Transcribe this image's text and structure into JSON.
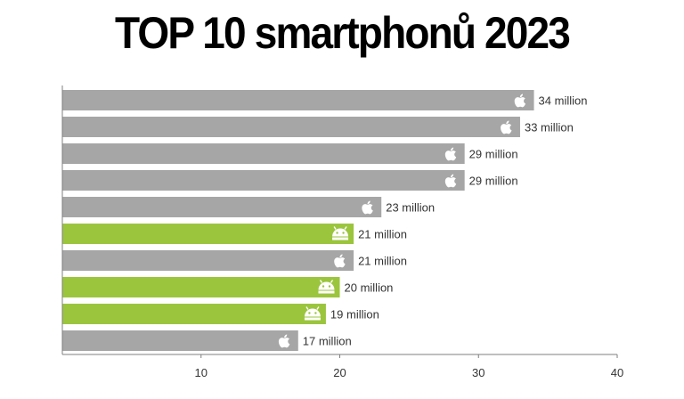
{
  "title": "TOP 10 smartphonů 2023",
  "chart_data": {
    "type": "bar",
    "orientation": "horizontal",
    "title": "TOP 10 smartphonů 2023",
    "unit_suffix": " million",
    "xlim": [
      0,
      40
    ],
    "xticks": [
      10,
      20,
      30,
      40
    ],
    "grid": false,
    "bars": [
      {
        "value": 34,
        "label": "34 million",
        "platform": "apple",
        "color": "#a6a6a6"
      },
      {
        "value": 33,
        "label": "33 million",
        "platform": "apple",
        "color": "#a6a6a6"
      },
      {
        "value": 29,
        "label": "29 million",
        "platform": "apple",
        "color": "#a6a6a6"
      },
      {
        "value": 29,
        "label": "29 million",
        "platform": "apple",
        "color": "#a6a6a6"
      },
      {
        "value": 23,
        "label": "23 million",
        "platform": "apple",
        "color": "#a6a6a6"
      },
      {
        "value": 21,
        "label": "21 million",
        "platform": "android",
        "color": "#9bc53d"
      },
      {
        "value": 21,
        "label": "21 million",
        "platform": "apple",
        "color": "#a6a6a6"
      },
      {
        "value": 20,
        "label": "20 million",
        "platform": "android",
        "color": "#9bc53d"
      },
      {
        "value": 19,
        "label": "19 million",
        "platform": "android",
        "color": "#9bc53d"
      },
      {
        "value": 17,
        "label": "17 million",
        "platform": "apple",
        "color": "#a6a6a6"
      }
    ]
  },
  "icons": {
    "apple": "apple-icon",
    "android": "android-icon"
  },
  "colors": {
    "axis": "#7f7f7f",
    "text": "#333333",
    "icon": "#ffffff"
  }
}
